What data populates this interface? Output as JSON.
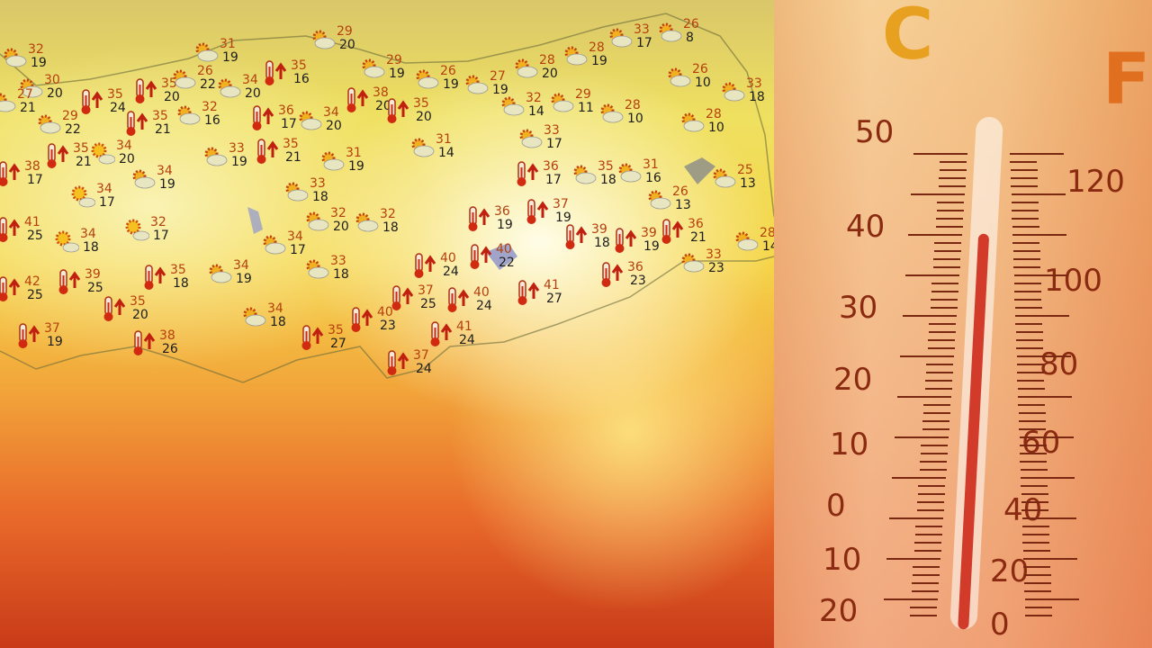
{
  "colors": {
    "high_temp": "#b5400f",
    "low_temp": "#1d1d1d",
    "mercury": "#d23a2a"
  },
  "stations": [
    {
      "icon": "partly-cloudy-icon",
      "high": "32",
      "low": "19"
    },
    {
      "icon": "partly-cloudy-icon",
      "high": "30",
      "low": "20"
    },
    {
      "icon": "partly-cloudy-icon",
      "high": "27",
      "low": "21"
    },
    {
      "icon": "partly-cloudy-icon",
      "high": "29",
      "low": "22"
    },
    {
      "icon": "thermometer-up-icon",
      "high": "35",
      "low": "24"
    },
    {
      "icon": "thermometer-up-icon",
      "high": "35",
      "low": "20"
    },
    {
      "icon": "partly-cloudy-icon",
      "high": "31",
      "low": "19"
    },
    {
      "icon": "partly-cloudy-icon",
      "high": "26",
      "low": "22"
    },
    {
      "icon": "partly-cloudy-icon",
      "high": "34",
      "low": "20"
    },
    {
      "icon": "partly-cloudy-icon",
      "high": "29",
      "low": "20"
    },
    {
      "icon": "thermometer-up-icon",
      "high": "35",
      "low": "16"
    },
    {
      "icon": "thermometer-up-icon",
      "high": "35",
      "low": "21"
    },
    {
      "icon": "partly-cloudy-icon",
      "high": "32",
      "low": "16"
    },
    {
      "icon": "thermometer-up-icon",
      "high": "36",
      "low": "17"
    },
    {
      "icon": "partly-cloudy-icon",
      "high": "34",
      "low": "20"
    },
    {
      "icon": "thermometer-up-icon",
      "high": "38",
      "low": "20"
    },
    {
      "icon": "thermometer-up-icon",
      "high": "35",
      "low": "20"
    },
    {
      "icon": "partly-cloudy-icon",
      "high": "29",
      "low": "19"
    },
    {
      "icon": "partly-cloudy-icon",
      "high": "26",
      "low": "19"
    },
    {
      "icon": "partly-cloudy-icon",
      "high": "27",
      "low": "19"
    },
    {
      "icon": "partly-cloudy-icon",
      "high": "28",
      "low": "20"
    },
    {
      "icon": "partly-cloudy-icon",
      "high": "28",
      "low": "19"
    },
    {
      "icon": "partly-cloudy-icon",
      "high": "33",
      "low": "17"
    },
    {
      "icon": "partly-cloudy-icon",
      "high": "26",
      "low": "8"
    },
    {
      "icon": "partly-cloudy-icon",
      "high": "26",
      "low": "10"
    },
    {
      "icon": "partly-cloudy-icon",
      "high": "33",
      "low": "18"
    },
    {
      "icon": "partly-cloudy-icon",
      "high": "32",
      "low": "14"
    },
    {
      "icon": "partly-cloudy-icon",
      "high": "29",
      "low": "11"
    },
    {
      "icon": "partly-cloudy-icon",
      "high": "28",
      "low": "10"
    },
    {
      "icon": "partly-cloudy-icon",
      "high": "28",
      "low": "10"
    },
    {
      "icon": "partly-cloudy-icon",
      "high": "31",
      "low": "14"
    },
    {
      "icon": "partly-cloudy-icon",
      "high": "33",
      "low": "17"
    },
    {
      "icon": "thermometer-up-icon",
      "high": "36",
      "low": "17"
    },
    {
      "icon": "partly-cloudy-icon",
      "high": "35",
      "low": "18"
    },
    {
      "icon": "partly-cloudy-icon",
      "high": "31",
      "low": "16"
    },
    {
      "icon": "partly-cloudy-icon",
      "high": "25",
      "low": "13"
    },
    {
      "icon": "partly-cloudy-icon",
      "high": "26",
      "low": "13"
    },
    {
      "icon": "thermometer-up-icon",
      "high": "37",
      "low": "19"
    },
    {
      "icon": "thermometer-up-icon",
      "high": "36",
      "low": "19"
    },
    {
      "icon": "thermometer-up-icon",
      "high": "39",
      "low": "18"
    },
    {
      "icon": "thermometer-up-icon",
      "high": "39",
      "low": "19"
    },
    {
      "icon": "thermometer-up-icon",
      "high": "36",
      "low": "21"
    },
    {
      "icon": "partly-cloudy-icon",
      "high": "28",
      "low": "14"
    },
    {
      "icon": "partly-cloudy-icon",
      "high": "33",
      "low": "23"
    },
    {
      "icon": "thermometer-up-icon",
      "high": "36",
      "low": "23"
    },
    {
      "icon": "thermometer-up-icon",
      "high": "40",
      "low": "22"
    },
    {
      "icon": "thermometer-up-icon",
      "high": "40",
      "low": "24"
    },
    {
      "icon": "thermometer-up-icon",
      "high": "41",
      "low": "27"
    },
    {
      "icon": "thermometer-up-icon",
      "high": "37",
      "low": "25"
    },
    {
      "icon": "thermometer-up-icon",
      "high": "40",
      "low": "24"
    },
    {
      "icon": "thermometer-up-icon",
      "high": "41",
      "low": "24"
    },
    {
      "icon": "thermometer-up-icon",
      "high": "37",
      "low": "24"
    },
    {
      "icon": "thermometer-up-icon",
      "high": "40",
      "low": "23"
    },
    {
      "icon": "thermometer-up-icon",
      "high": "35",
      "low": "27"
    },
    {
      "icon": "partly-cloudy-icon",
      "high": "34",
      "low": "18"
    },
    {
      "icon": "thermometer-up-icon",
      "high": "38",
      "low": "26"
    },
    {
      "icon": "thermometer-up-icon",
      "high": "37",
      "low": "19"
    },
    {
      "icon": "thermometer-up-icon",
      "high": "35",
      "low": "20"
    },
    {
      "icon": "thermometer-up-icon",
      "high": "39",
      "low": "25"
    },
    {
      "icon": "thermometer-up-icon",
      "high": "42",
      "low": "25"
    },
    {
      "icon": "thermometer-up-icon",
      "high": "41",
      "low": "25"
    },
    {
      "icon": "sunny-cloud-icon",
      "high": "34",
      "low": "18"
    },
    {
      "icon": "sunny-cloud-icon",
      "high": "32",
      "low": "17"
    },
    {
      "icon": "thermometer-up-icon",
      "high": "35",
      "low": "18"
    },
    {
      "icon": "partly-cloudy-icon",
      "high": "34",
      "low": "19"
    },
    {
      "icon": "partly-cloudy-icon",
      "high": "33",
      "low": "18"
    },
    {
      "icon": "partly-cloudy-icon",
      "high": "34",
      "low": "17"
    },
    {
      "icon": "partly-cloudy-icon",
      "high": "32",
      "low": "20"
    },
    {
      "icon": "partly-cloudy-icon",
      "high": "32",
      "low": "18"
    },
    {
      "icon": "partly-cloudy-icon",
      "high": "33",
      "low": "18"
    },
    {
      "icon": "partly-cloudy-icon",
      "high": "34",
      "low": "19"
    },
    {
      "icon": "sunny-cloud-icon",
      "high": "34",
      "low": "17"
    },
    {
      "icon": "thermometer-up-icon",
      "high": "38",
      "low": "17"
    },
    {
      "icon": "thermometer-up-icon",
      "high": "35",
      "low": "21"
    },
    {
      "icon": "sunny-cloud-icon",
      "high": "34",
      "low": "20"
    },
    {
      "icon": "partly-cloudy-icon",
      "high": "33",
      "low": "19"
    },
    {
      "icon": "thermometer-up-icon",
      "high": "35",
      "low": "21"
    },
    {
      "icon": "partly-cloudy-icon",
      "high": "31",
      "low": "19"
    }
  ],
  "thermometer": {
    "celsius_unit": "C",
    "fahrenheit_unit": "F",
    "celsius_labels": [
      "50",
      "40",
      "30",
      "20",
      "10",
      "0",
      "10",
      "20"
    ],
    "fahrenheit_labels": [
      "120",
      "100",
      "80",
      "60",
      "40",
      "20",
      "0"
    ],
    "reading_celsius": 38
  }
}
